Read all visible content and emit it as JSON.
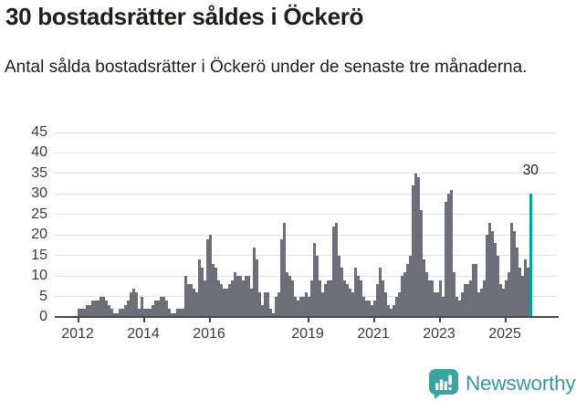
{
  "header": {
    "title": "30 bostadsrätter såldes i Öckerö",
    "subtitle": "Antal sålda bostadsrätter i Öckerö under de senaste tre månaderna."
  },
  "chart_data": {
    "type": "bar",
    "title": "30 bostadsrätter såldes i Öckerö",
    "subtitle": "Antal sålda bostadsrätter i Öckerö under de senaste tre månaderna.",
    "frequency": "monthly",
    "x_start": "2012-01",
    "x_end": "2025-10",
    "ylim": [
      0,
      45
    ],
    "yticks": [
      0,
      5,
      10,
      15,
      20,
      25,
      30,
      35,
      40,
      45
    ],
    "grid": "horizontal",
    "legend": "none",
    "xticks": [
      {
        "label": "2012",
        "month_index": 0
      },
      {
        "label": "2014",
        "month_index": 24
      },
      {
        "label": "2016",
        "month_index": 48
      },
      {
        "label": "2019",
        "month_index": 84
      },
      {
        "label": "2021",
        "month_index": 108
      },
      {
        "label": "2023",
        "month_index": 132
      },
      {
        "label": "2025",
        "month_index": 156
      }
    ],
    "series": [
      {
        "name": "Antal sålda bostadsrätter (rullande tre månader)",
        "values": [
          2,
          2,
          2,
          3,
          3,
          4,
          4,
          4,
          5,
          5,
          4,
          3,
          2,
          1,
          1,
          2,
          2,
          3,
          4,
          6,
          7,
          6,
          2,
          5,
          2,
          2,
          2,
          3,
          4,
          4,
          5,
          5,
          4,
          2,
          1,
          1,
          2,
          2,
          2,
          10,
          8,
          8,
          7,
          6,
          14,
          12,
          9,
          19,
          20,
          13,
          12,
          9,
          8,
          7,
          7,
          8,
          9,
          11,
          10,
          10,
          9,
          10,
          10,
          7,
          17,
          14,
          6,
          3,
          6,
          6,
          2,
          1,
          5,
          6,
          19,
          23,
          11,
          10,
          9,
          5,
          4,
          5,
          5,
          6,
          5,
          9,
          18,
          15,
          9,
          6,
          8,
          9,
          9,
          22,
          23,
          15,
          12,
          9,
          8,
          7,
          6,
          12,
          10,
          9,
          5,
          4,
          4,
          3,
          4,
          8,
          12,
          9,
          6,
          3,
          2,
          3,
          5,
          6,
          10,
          11,
          13,
          15,
          32,
          35,
          34,
          26,
          14,
          11,
          9,
          9,
          6,
          6,
          9,
          5,
          28,
          30,
          31,
          11,
          5,
          4,
          6,
          8,
          8,
          9,
          13,
          13,
          6,
          7,
          9,
          20,
          23,
          21,
          18,
          15,
          8,
          7,
          9,
          11,
          23,
          21,
          17,
          12,
          10,
          14,
          12,
          30
        ]
      }
    ],
    "highlight": {
      "month": "2025-10",
      "index": 165,
      "value": 30,
      "annotation": "30"
    },
    "colors": {
      "bar": "#6e6e78",
      "highlight": "#00a3a0",
      "grid": "#e3e3e6",
      "axis": "#46464e",
      "text": "#1d1d1b",
      "tick_label": "#3a3a3a"
    }
  },
  "footer": {
    "brand": "Newsworthy",
    "icon": "newsworthy-chart-bubble-icon",
    "colors": {
      "icon": "#3aa49f",
      "text": "#38979a"
    }
  }
}
